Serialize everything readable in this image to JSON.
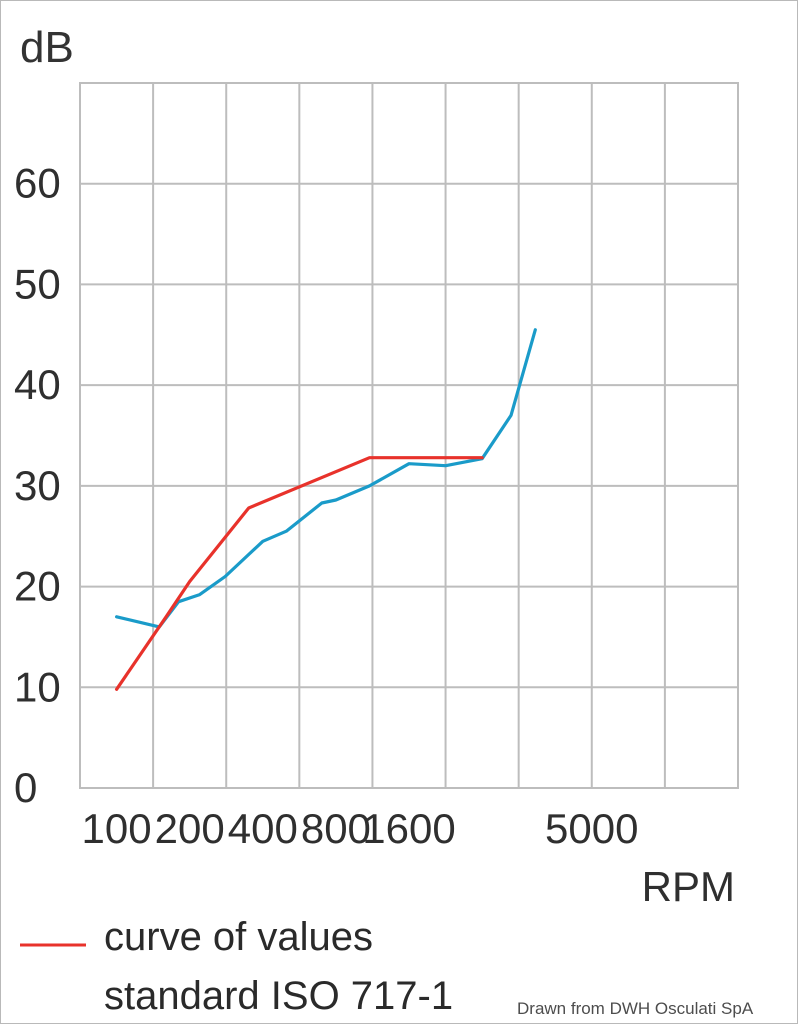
{
  "chart_data": {
    "type": "line",
    "ylabel": "dB",
    "xlabel": "RPM",
    "y_ticks": [
      "0",
      "10",
      "20",
      "30",
      "40",
      "50",
      "60"
    ],
    "x_ticks": [
      "100",
      "200",
      "400",
      "800",
      "1600",
      "5000"
    ],
    "ylim": [
      0,
      70
    ],
    "grid": true,
    "series": [
      {
        "name": "",
        "color": "#1a9bc9",
        "x": [
          100,
          150,
          180,
          220,
          280,
          400,
          500,
          700,
          800,
          1100,
          1600,
          2000,
          2500,
          3000,
          3500
        ],
        "y": [
          17,
          16,
          18.5,
          19.2,
          21,
          24.5,
          25.5,
          28.3,
          28.6,
          30,
          32.2,
          32,
          32.7,
          37,
          45.5
        ]
      },
      {
        "name": "curve of values standard ISO 717-1",
        "color": "#e8322b",
        "x": [
          100,
          160,
          200,
          350,
          1100,
          2500
        ],
        "y": [
          9.8,
          17,
          20.5,
          27.8,
          32.8,
          32.8
        ]
      }
    ],
    "legend": {
      "position": "bottom-left",
      "line1": "curve of values",
      "line2": "standard ISO 717-1"
    },
    "annotation": "Drawn from DWH Osculati SpA"
  }
}
